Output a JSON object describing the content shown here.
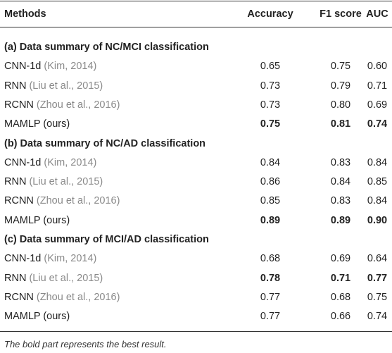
{
  "table": {
    "columns": [
      "Methods",
      "Accuracy",
      "F1 score",
      "AUC"
    ],
    "sections": [
      {
        "title": "(a) Data summary of NC/MCI classification",
        "rows": [
          {
            "method": "CNN-1d",
            "cite": "(Kim, 2014)",
            "values": [
              "0.65",
              "0.75",
              "0.60"
            ],
            "bold": false
          },
          {
            "method": "RNN",
            "cite": "(Liu et al., 2015)",
            "values": [
              "0.73",
              "0.79",
              "0.71"
            ],
            "bold": false
          },
          {
            "method": "RCNN",
            "cite": "(Zhou et al., 2016)",
            "values": [
              "0.73",
              "0.80",
              "0.69"
            ],
            "bold": false
          },
          {
            "method": "MAMLP (ours)",
            "values": [
              "0.75",
              "0.81",
              "0.74"
            ],
            "bold": true
          }
        ]
      },
      {
        "title": "(b) Data summary of NC/AD classification",
        "rows": [
          {
            "method": "CNN-1d",
            "cite": "(Kim, 2014)",
            "values": [
              "0.84",
              "0.83",
              "0.84"
            ],
            "bold": false
          },
          {
            "method": "RNN",
            "cite": "(Liu et al., 2015)",
            "values": [
              "0.86",
              "0.84",
              "0.85"
            ],
            "bold": false
          },
          {
            "method": "RCNN",
            "cite": "(Zhou et al., 2016)",
            "values": [
              "0.85",
              "0.83",
              "0.84"
            ],
            "bold": false
          },
          {
            "method": "MAMLP (ours)",
            "values": [
              "0.89",
              "0.89",
              "0.90"
            ],
            "bold": true
          }
        ]
      },
      {
        "title": "(c) Data summary of MCI/AD classification",
        "rows": [
          {
            "method": "CNN-1d",
            "cite": "(Kim, 2014)",
            "values": [
              "0.68",
              "0.69",
              "0.64"
            ],
            "bold": false
          },
          {
            "method": "RNN",
            "cite": "(Liu et al., 2015)",
            "values": [
              "0.78",
              "0.71",
              "0.77"
            ],
            "bold": true
          },
          {
            "method": "RCNN",
            "cite": "(Zhou et al., 2016)",
            "values": [
              "0.77",
              "0.68",
              "0.75"
            ],
            "bold": false
          },
          {
            "method": "MAMLP (ours)",
            "values": [
              "0.77",
              "0.66",
              "0.74"
            ],
            "bold": false
          }
        ]
      }
    ]
  },
  "footnote": "The bold part represents the best result."
}
